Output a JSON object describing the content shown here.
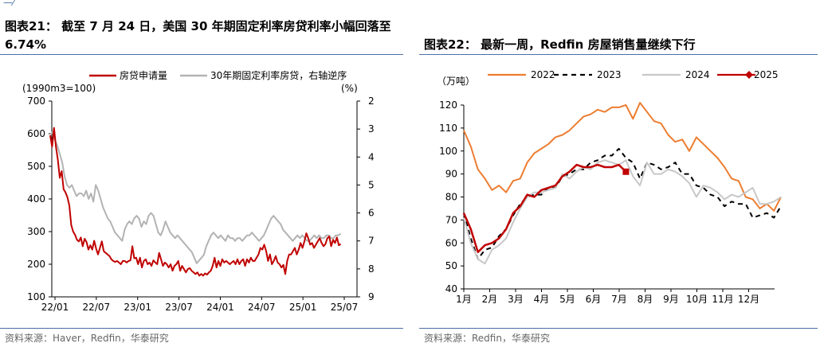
{
  "left": {
    "title_line1": "图表21：  截至 7 月 24 日，美国 30 年期固定利率房贷利率小幅回落至",
    "title_line2": "6.74%",
    "source": "资料来源：Haver，Redfin，华泰研究",
    "colors": {
      "series1": "#c00000",
      "series2": "#b3b3b3"
    }
  },
  "right": {
    "title": "图表22：  最新一周，Redfin 房屋销售量继续下行",
    "source": "资料来源：Redfin，华泰研究",
    "colors": {
      "2022": "#ed7d31",
      "2023": "#000000",
      "2024": "#c8c8c8",
      "2025": "#c00000"
    }
  },
  "chart_data": [
    {
      "type": "line",
      "y_unit_label": "(1990m3=100)",
      "y2_unit_label": "(%)",
      "x_ticks": [
        "22/01",
        "22/07",
        "23/01",
        "23/07",
        "24/01",
        "24/07",
        "25/01",
        "25/07"
      ],
      "ylim": [
        100,
        700
      ],
      "y_ticks": [
        100,
        200,
        300,
        400,
        500,
        600,
        700
      ],
      "y2lim": [
        2,
        9
      ],
      "y2_inverted": true,
      "y2_ticks": [
        2,
        3,
        4,
        5,
        6,
        7,
        8,
        9
      ],
      "series": [
        {
          "name": "房贷申请量",
          "axis": "left",
          "values": [
            595,
            560,
            618,
            560,
            520,
            465,
            485,
            430,
            420,
            405,
            380,
            320,
            300,
            290,
            275,
            270,
            282,
            255,
            278,
            268,
            245,
            258,
            245,
            272,
            248,
            230,
            250,
            270,
            240,
            235,
            230,
            225,
            215,
            210,
            207,
            210,
            205,
            200,
            210,
            210,
            205,
            210,
            212,
            255,
            218,
            220,
            200,
            220,
            190,
            210,
            215,
            200,
            205,
            195,
            212,
            205,
            200,
            235,
            215,
            195,
            205,
            200,
            190,
            200,
            180,
            195,
            200,
            210,
            180,
            195,
            185,
            175,
            185,
            188,
            180,
            175,
            170,
            175,
            165,
            170,
            165,
            172,
            168,
            175,
            180,
            195,
            220,
            190,
            210,
            195,
            215,
            205,
            210,
            205,
            200,
            205,
            210,
            200,
            215,
            200,
            210,
            215,
            195,
            215,
            205,
            220,
            210,
            210,
            220,
            230,
            250,
            245,
            260,
            240,
            210,
            230,
            200,
            210,
            225,
            205,
            200,
            190,
            198,
            170,
            210,
            230,
            230,
            240,
            250,
            230,
            245,
            265,
            250,
            270,
            295,
            280,
            260,
            265,
            250,
            260,
            270,
            280,
            265,
            255,
            262,
            280,
            285,
            255,
            275,
            265,
            282,
            258,
            262
          ],
          "x_start": 0,
          "x_step": 0.2
        },
        {
          "name": "30年期固定利率房贷，右轴逆序",
          "axis": "right",
          "values": [
            3.2,
            3.1,
            3.4,
            3.6,
            3.9,
            4.2,
            4.7,
            5.0,
            5.1,
            5.0,
            5.2,
            5.4,
            5.3,
            5.3,
            5.4,
            5.2,
            5.5,
            5.3,
            5.6,
            5.0,
            5.2,
            5.5,
            5.8,
            6.0,
            6.2,
            6.3,
            6.5,
            6.7,
            6.8,
            6.9,
            7.0,
            6.6,
            6.4,
            6.3,
            6.4,
            6.2,
            6.1,
            6.2,
            6.5,
            6.3,
            6.4,
            6.1,
            6.0,
            6.1,
            6.4,
            6.7,
            6.8,
            6.6,
            6.3,
            6.5,
            6.7,
            6.8,
            6.9,
            6.8,
            6.9,
            7.0,
            7.1,
            7.2,
            7.3,
            7.4,
            7.6,
            7.8,
            7.7,
            7.6,
            7.5,
            7.2,
            7.0,
            6.8,
            6.7,
            6.8,
            6.9,
            6.8,
            6.9,
            7.0,
            6.8,
            6.9,
            6.9,
            7.0,
            6.9,
            6.9,
            7.0,
            6.9,
            6.8,
            6.8,
            6.7,
            6.8,
            6.9,
            7.0,
            6.9,
            6.8,
            6.6,
            6.4,
            6.2,
            6.1,
            6.2,
            6.3,
            6.4,
            6.6,
            6.7,
            6.8,
            6.9,
            7.0,
            6.9,
            6.8,
            6.9,
            6.8,
            6.9,
            7.0,
            7.0,
            6.9,
            6.8,
            6.9,
            6.8,
            6.9,
            6.9,
            6.8,
            6.8,
            6.9,
            6.9,
            6.8,
            6.8,
            6.74
          ],
          "x_start": 0,
          "x_step": 0.2903
        }
      ]
    },
    {
      "type": "line",
      "y_unit_label": "（万吨）",
      "x_ticks": [
        "1月",
        "2月",
        "3月",
        "4月",
        "5月",
        "6月",
        "7月",
        "8月",
        "9月",
        "10月",
        "11月",
        "12月"
      ],
      "ylim": [
        40,
        120
      ],
      "y_ticks": [
        40,
        50,
        60,
        70,
        80,
        90,
        100,
        110,
        120
      ],
      "series": [
        {
          "name": "2022",
          "style": "solid",
          "values": [
            109,
            102,
            92,
            88,
            83,
            85,
            82,
            87,
            88,
            95,
            99,
            101,
            103,
            106,
            107,
            109,
            112,
            115,
            116,
            118,
            117,
            119,
            119,
            120,
            114,
            121,
            117,
            113,
            112,
            107,
            104,
            105,
            100,
            106,
            103,
            100,
            97,
            93,
            88,
            87,
            80,
            79,
            75,
            77,
            74,
            80
          ]
        },
        {
          "name": "2023",
          "style": "dashed",
          "values": [
            73,
            62,
            53,
            57,
            58,
            63,
            66,
            72,
            77,
            80,
            81,
            81,
            84,
            84,
            89,
            90,
            92,
            92,
            95,
            96,
            98,
            98,
            101,
            97,
            95,
            88,
            95,
            94,
            92,
            93,
            95,
            90,
            90,
            85,
            84,
            81,
            80,
            76,
            78,
            77,
            77,
            71,
            72,
            73,
            71,
            76
          ]
        },
        {
          "name": "2024",
          "style": "solid",
          "values": [
            71,
            60,
            53,
            51,
            57,
            59,
            62,
            69,
            75,
            80,
            82,
            82,
            83,
            84,
            90,
            88,
            91,
            93,
            92,
            95,
            96,
            95,
            94,
            96,
            89,
            85,
            95,
            90,
            90,
            92,
            91,
            89,
            86,
            80,
            85,
            84,
            82,
            79,
            81,
            80,
            82,
            84,
            77,
            77,
            78,
            80
          ]
        },
        {
          "name": "2025",
          "style": "solid-marker",
          "values": [
            73,
            66,
            56,
            59,
            60,
            62,
            66,
            73,
            76,
            81,
            80,
            83,
            84,
            85,
            89,
            91,
            94,
            93,
            93,
            94,
            93,
            93,
            94,
            91
          ]
        }
      ]
    }
  ]
}
